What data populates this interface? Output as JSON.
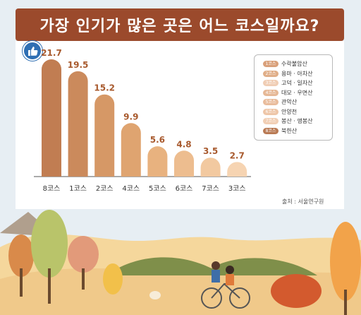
{
  "title": "가장 인기가 많은 곳은 어느 코스일까요?",
  "source": "출처 : 서울연구원",
  "colors": {
    "banner": "#9b4a2c",
    "label": "#a85a2e",
    "bars": [
      "#c17d52",
      "#cb8a5c",
      "#d69866",
      "#dfa470",
      "#e8b27f",
      "#edbd8f",
      "#f2c9a0",
      "#f6d4b2"
    ]
  },
  "legend": [
    {
      "badge": "1코스",
      "label": "수락불암산",
      "color": "#d9a07a"
    },
    {
      "badge": "2코스",
      "label": "용마 · 아차산",
      "color": "#e0ae88"
    },
    {
      "badge": "3코스",
      "label": "고덕 · 일자산",
      "color": "#f0cdb4"
    },
    {
      "badge": "4코스",
      "label": "대모 · 우면산",
      "color": "#e6b896"
    },
    {
      "badge": "5코스",
      "label": "관악산",
      "color": "#e9bc9c"
    },
    {
      "badge": "6코스",
      "label": "안양천",
      "color": "#eec6a8"
    },
    {
      "badge": "7코스",
      "label": "봉산 · 앵봉산",
      "color": "#f1cfb5"
    },
    {
      "badge": "8코스",
      "label": "북한산",
      "color": "#b97a54"
    }
  ],
  "chart_data": {
    "type": "bar",
    "title": "가장 인기가 많은 곳은 어느 코스일까요?",
    "xlabel": "",
    "ylabel": "",
    "categories": [
      "8코스",
      "1코스",
      "2코스",
      "4코스",
      "5코스",
      "6코스",
      "7코스",
      "3코스"
    ],
    "values": [
      21.7,
      19.5,
      15.2,
      9.9,
      5.6,
      4.8,
      3.5,
      2.7
    ],
    "value_labels": [
      "21.7",
      "19.5",
      "15.2",
      "9.9",
      "5.6",
      "4.8",
      "3.5",
      "2.7"
    ],
    "ylim": [
      0,
      21.7
    ],
    "grid": false
  }
}
